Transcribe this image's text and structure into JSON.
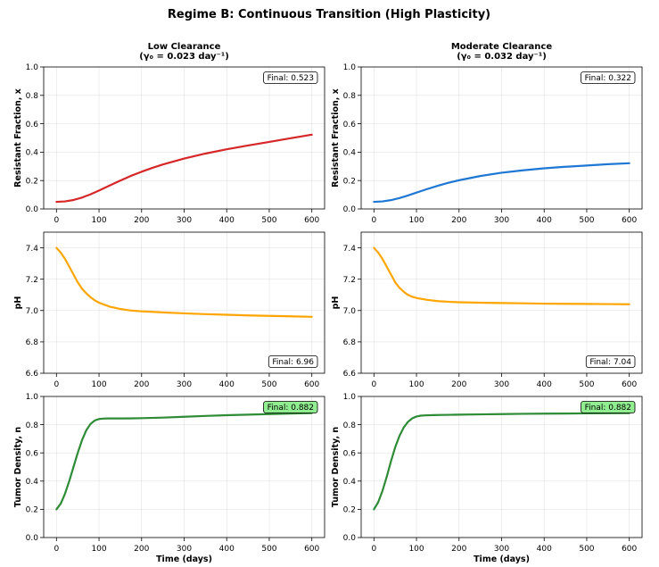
{
  "suptitle": "Regime B: Continuous Transition (High Plasticity)",
  "chart_data": [
    {
      "type": "line",
      "title": "Low Clearance\n(γ₀ = 0.023 day⁻¹)",
      "xlabel": "",
      "ylabel": "Resistant Fraction, x",
      "xlim": [
        -30,
        630
      ],
      "ylim": [
        0.0,
        1.0
      ],
      "xticks": [
        0,
        100,
        200,
        300,
        400,
        500,
        600
      ],
      "yticks": [
        "0.0",
        "0.2",
        "0.4",
        "0.6",
        "0.8",
        "1.0"
      ],
      "color": "#d62728",
      "grid": true,
      "annotation": "Final: 0.523",
      "annotation_bg": "#ffffff",
      "annotation_pos": "top-right",
      "series": [
        {
          "name": "x",
          "x": [
            0,
            20,
            40,
            60,
            80,
            100,
            125,
            150,
            175,
            200,
            225,
            250,
            300,
            350,
            400,
            450,
            500,
            550,
            600
          ],
          "y": [
            0.05,
            0.053,
            0.063,
            0.08,
            0.103,
            0.13,
            0.165,
            0.2,
            0.233,
            0.262,
            0.289,
            0.313,
            0.355,
            0.39,
            0.42,
            0.447,
            0.472,
            0.498,
            0.523
          ]
        }
      ]
    },
    {
      "type": "line",
      "title": "Moderate Clearance\n(γ₀ = 0.032 day⁻¹)",
      "xlabel": "",
      "ylabel": "Resistant Fraction, x",
      "xlim": [
        -30,
        630
      ],
      "ylim": [
        0.0,
        1.0
      ],
      "xticks": [
        0,
        100,
        200,
        300,
        400,
        500,
        600
      ],
      "yticks": [
        "0.0",
        "0.2",
        "0.4",
        "0.6",
        "0.8",
        "1.0"
      ],
      "color": "#1f77d4",
      "grid": true,
      "annotation": "Final: 0.322",
      "annotation_bg": "#ffffff",
      "annotation_pos": "top-right",
      "series": [
        {
          "name": "x",
          "x": [
            0,
            20,
            40,
            60,
            80,
            100,
            125,
            150,
            175,
            200,
            250,
            300,
            350,
            400,
            450,
            500,
            550,
            600
          ],
          "y": [
            0.05,
            0.053,
            0.062,
            0.077,
            0.095,
            0.115,
            0.14,
            0.163,
            0.184,
            0.202,
            0.232,
            0.255,
            0.272,
            0.286,
            0.297,
            0.306,
            0.315,
            0.322
          ]
        }
      ]
    },
    {
      "type": "line",
      "title": "",
      "xlabel": "",
      "ylabel": "pH",
      "xlim": [
        -30,
        630
      ],
      "ylim": [
        6.6,
        7.5
      ],
      "xticks": [
        0,
        100,
        200,
        300,
        400,
        500,
        600
      ],
      "yticks": [
        "6.6",
        "6.8",
        "7.0",
        "7.2",
        "7.4"
      ],
      "color": "#ffa500",
      "grid": true,
      "annotation": "Final: 6.96",
      "annotation_bg": "#ffffff",
      "annotation_pos": "bottom-right",
      "series": [
        {
          "name": "pH",
          "x": [
            0,
            10,
            20,
            30,
            40,
            50,
            60,
            70,
            80,
            90,
            100,
            125,
            150,
            175,
            200,
            250,
            300,
            350,
            400,
            450,
            500,
            550,
            600
          ],
          "y": [
            7.4,
            7.37,
            7.33,
            7.28,
            7.23,
            7.18,
            7.14,
            7.11,
            7.085,
            7.065,
            7.05,
            7.025,
            7.01,
            7.0,
            6.995,
            6.988,
            6.982,
            6.977,
            6.973,
            6.969,
            6.966,
            6.963,
            6.96
          ]
        }
      ]
    },
    {
      "type": "line",
      "title": "",
      "xlabel": "",
      "ylabel": "pH",
      "xlim": [
        -30,
        630
      ],
      "ylim": [
        6.6,
        7.5
      ],
      "xticks": [
        0,
        100,
        200,
        300,
        400,
        500,
        600
      ],
      "yticks": [
        "6.6",
        "6.8",
        "7.0",
        "7.2",
        "7.4"
      ],
      "color": "#ffa500",
      "grid": true,
      "annotation": "Final: 7.04",
      "annotation_bg": "#ffffff",
      "annotation_pos": "bottom-right",
      "series": [
        {
          "name": "pH",
          "x": [
            0,
            10,
            20,
            30,
            40,
            50,
            60,
            70,
            80,
            90,
            100,
            125,
            150,
            175,
            200,
            250,
            300,
            350,
            400,
            450,
            500,
            550,
            600
          ],
          "y": [
            7.4,
            7.37,
            7.33,
            7.28,
            7.23,
            7.18,
            7.145,
            7.12,
            7.1,
            7.088,
            7.08,
            7.068,
            7.06,
            7.056,
            7.053,
            7.05,
            7.048,
            7.046,
            7.044,
            7.043,
            7.042,
            7.041,
            7.04
          ]
        }
      ]
    },
    {
      "type": "line",
      "title": "",
      "xlabel": "Time (days)",
      "ylabel": "Tumor Density, n",
      "xlim": [
        -30,
        630
      ],
      "ylim": [
        0.0,
        1.0
      ],
      "xticks": [
        0,
        100,
        200,
        300,
        400,
        500,
        600
      ],
      "yticks": [
        "0.0",
        "0.2",
        "0.4",
        "0.6",
        "0.8",
        "1.0"
      ],
      "color": "#2e8b36",
      "grid": true,
      "annotation": "Final: 0.882",
      "annotation_bg": "#90ee90",
      "annotation_pos": "top-right",
      "series": [
        {
          "name": "n",
          "x": [
            0,
            10,
            20,
            30,
            40,
            50,
            60,
            70,
            80,
            90,
            100,
            110,
            120,
            140,
            160,
            180,
            200,
            250,
            300,
            350,
            400,
            450,
            500,
            550,
            600
          ],
          "y": [
            0.2,
            0.24,
            0.31,
            0.4,
            0.5,
            0.6,
            0.69,
            0.76,
            0.805,
            0.83,
            0.84,
            0.843,
            0.844,
            0.844,
            0.844,
            0.845,
            0.846,
            0.85,
            0.856,
            0.862,
            0.867,
            0.871,
            0.875,
            0.879,
            0.882
          ]
        }
      ]
    },
    {
      "type": "line",
      "title": "",
      "xlabel": "Time (days)",
      "ylabel": "Tumor Density, n",
      "xlim": [
        -30,
        630
      ],
      "ylim": [
        0.0,
        1.0
      ],
      "xticks": [
        0,
        100,
        200,
        300,
        400,
        500,
        600
      ],
      "yticks": [
        "0.0",
        "0.2",
        "0.4",
        "0.6",
        "0.8",
        "1.0"
      ],
      "color": "#2e8b36",
      "grid": true,
      "annotation": "Final: 0.882",
      "annotation_bg": "#90ee90",
      "annotation_pos": "top-right",
      "series": [
        {
          "name": "n",
          "x": [
            0,
            10,
            20,
            30,
            40,
            50,
            60,
            70,
            80,
            90,
            100,
            110,
            120,
            140,
            160,
            180,
            200,
            250,
            300,
            350,
            400,
            450,
            500,
            550,
            600
          ],
          "y": [
            0.2,
            0.25,
            0.33,
            0.43,
            0.54,
            0.64,
            0.72,
            0.78,
            0.82,
            0.845,
            0.858,
            0.864,
            0.866,
            0.868,
            0.869,
            0.87,
            0.871,
            0.873,
            0.875,
            0.877,
            0.878,
            0.879,
            0.88,
            0.881,
            0.882
          ]
        }
      ]
    }
  ]
}
